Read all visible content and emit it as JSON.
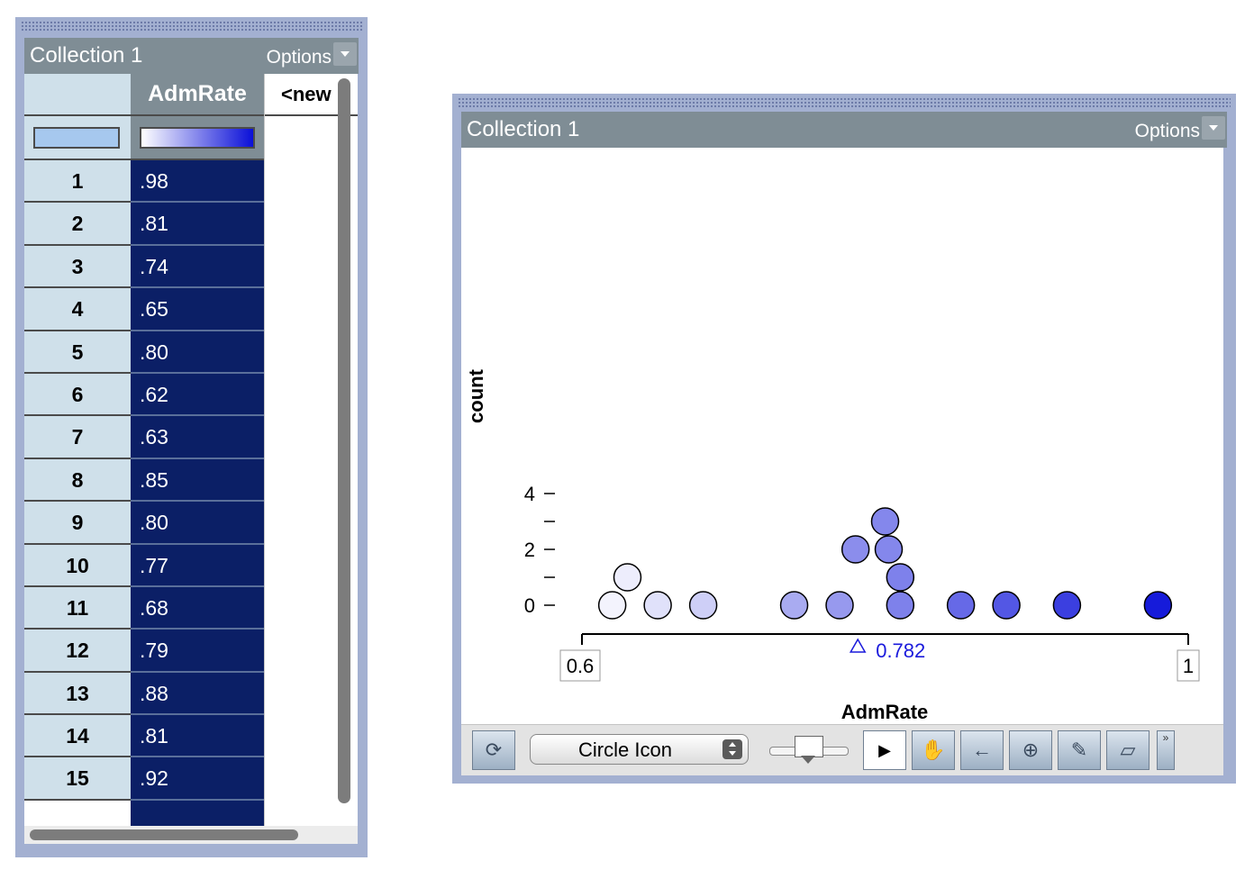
{
  "table_window": {
    "title": "Collection 1",
    "options_label": "Options",
    "column_header": "AdmRate",
    "new_column_header": "<new",
    "row_indices": [
      "1",
      "2",
      "3",
      "4",
      "5",
      "6",
      "7",
      "8",
      "9",
      "10",
      "11",
      "12",
      "13",
      "14",
      "15"
    ],
    "values": [
      ".98",
      ".81",
      ".74",
      ".65",
      ".80",
      ".62",
      ".63",
      ".85",
      ".80",
      ".77",
      ".68",
      ".79",
      ".88",
      ".81",
      ".92"
    ]
  },
  "graph_window": {
    "title": "Collection 1",
    "options_label": "Options",
    "y_axis_label": "count",
    "x_axis_label": "AdmRate",
    "x_min_label": "0.6",
    "x_max_label": "1",
    "mean_label": "0.782",
    "toolbar": {
      "icon_select": "Circle Icon",
      "buttons": [
        "rescale-icon",
        "select-arrow-icon",
        "drag-hand-icon",
        "movable-line-icon",
        "add-point-icon",
        "pencil-icon",
        "eraser-icon"
      ],
      "more_label": "»"
    }
  },
  "chart_data": {
    "type": "scatter",
    "subtype": "dot-plot",
    "xlabel": "AdmRate",
    "ylabel": "count",
    "xlim": [
      0.6,
      1.0
    ],
    "ylim": [
      0,
      4
    ],
    "y_ticks": [
      "0",
      "2",
      "4"
    ],
    "x_ticks": [
      "0.6",
      "1"
    ],
    "mean": 0.782,
    "points": [
      {
        "x": 0.62,
        "y": 0
      },
      {
        "x": 0.63,
        "y": 1
      },
      {
        "x": 0.65,
        "y": 0
      },
      {
        "x": 0.68,
        "y": 0
      },
      {
        "x": 0.74,
        "y": 0
      },
      {
        "x": 0.77,
        "y": 0
      },
      {
        "x": 0.79,
        "y": 2
      },
      {
        "x": 0.8,
        "y": 2
      },
      {
        "x": 0.8,
        "y": 3
      },
      {
        "x": 0.81,
        "y": 1
      },
      {
        "x": 0.81,
        "y": 0
      },
      {
        "x": 0.85,
        "y": 0
      },
      {
        "x": 0.88,
        "y": 0
      },
      {
        "x": 0.92,
        "y": 0
      },
      {
        "x": 0.98,
        "y": 0
      }
    ],
    "color_scale": [
      "#ffffff",
      "#0a0fd8"
    ]
  }
}
